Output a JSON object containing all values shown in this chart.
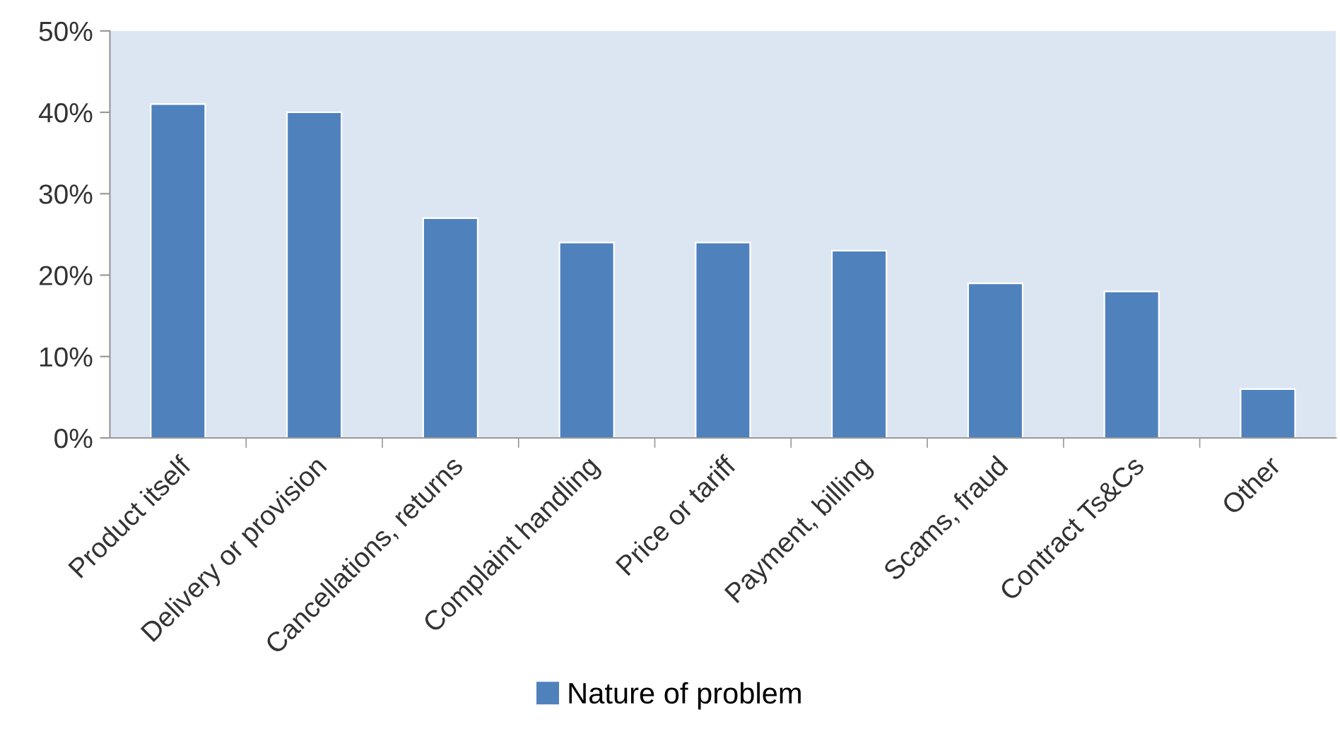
{
  "chart_data": {
    "type": "bar",
    "categories": [
      "Product itself",
      "Delivery or provision",
      "Cancellations, returns",
      "Complaint handling",
      "Price or tariff",
      "Payment, billing",
      "Scams, fraud",
      "Contract Ts&Cs",
      "Other"
    ],
    "series": [
      {
        "name": "Nature of problem",
        "color": "#4f81bd",
        "values": [
          41,
          40,
          27,
          24,
          24,
          23,
          19,
          18,
          6
        ]
      }
    ],
    "ylim": [
      0,
      50
    ],
    "yticks": [
      {
        "value": 0,
        "label": "0%"
      },
      {
        "value": 10,
        "label": "10%"
      },
      {
        "value": 20,
        "label": "20%"
      },
      {
        "value": 30,
        "label": "30%"
      },
      {
        "value": 40,
        "label": "40%"
      },
      {
        "value": 50,
        "label": "50%"
      }
    ],
    "grid": false,
    "legend": "bottom"
  }
}
